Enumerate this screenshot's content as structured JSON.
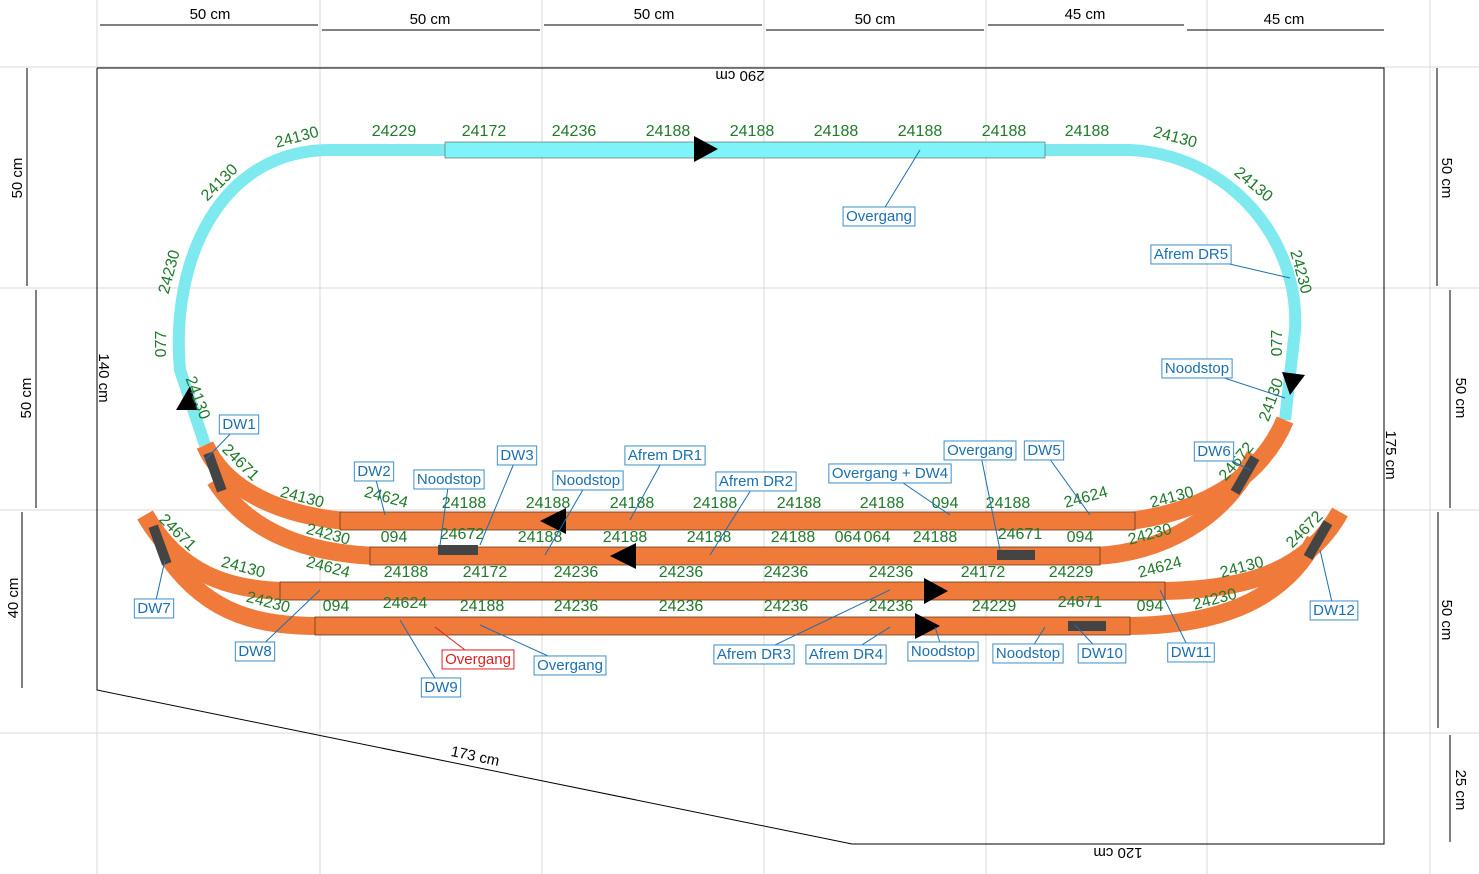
{
  "dimensions": {
    "top": [
      "50 cm",
      "50 cm",
      "50 cm",
      "50 cm",
      "45 cm",
      "45 cm"
    ],
    "left": [
      "50 cm",
      "50 cm",
      "40 cm"
    ],
    "right": [
      "50 cm",
      "50 cm",
      "50 cm",
      "25 cm"
    ]
  },
  "board": [
    "290 cm",
    "140 cm",
    "175 cm",
    "173 cm",
    "120 cm"
  ],
  "track_parts": [
    "24130",
    "24229",
    "24172",
    "24236",
    "24188",
    "24188",
    "24188",
    "24188",
    "24188",
    "24188",
    "24130",
    "24130",
    "24230",
    "077",
    "24130",
    "24672",
    "24130",
    "24230",
    "077",
    "24130",
    "24671",
    "24130",
    "24624",
    "24188",
    "24188",
    "24188",
    "24188",
    "24188",
    "24188",
    "094",
    "24188",
    "24624",
    "24130",
    "24230",
    "094",
    "24672",
    "24188",
    "24188",
    "24188",
    "24188",
    "064",
    "064",
    "24188",
    "24671",
    "094",
    "24230",
    "24671",
    "24130",
    "24624",
    "24188",
    "24172",
    "24236",
    "24236",
    "24236",
    "24236",
    "24172",
    "24229",
    "24624",
    "24130",
    "24672",
    "24230",
    "094",
    "24624",
    "24188",
    "24236",
    "24236",
    "24236",
    "24236",
    "24229",
    "24671",
    "094",
    "24230"
  ],
  "labels": [
    "DW1",
    "DW2",
    "Noodstop",
    "DW3",
    "Noodstop",
    "Afrem DR1",
    "Afrem DR2",
    "Overgang + DW4",
    "Overgang",
    "DW5",
    "DW6",
    "Overgang",
    "Afrem DR5",
    "Noodstop",
    "DW7",
    "DW8",
    "DW9",
    "Overgang",
    "Overgang",
    "Afrem DR3",
    "Afrem DR4",
    "Noodstop",
    "Noodstop",
    "DW10",
    "DW11",
    "DW12"
  ]
}
